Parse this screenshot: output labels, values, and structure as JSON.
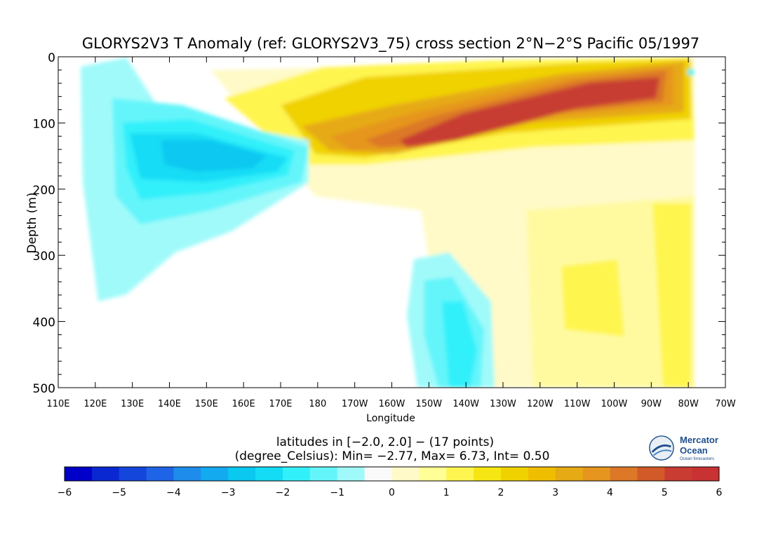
{
  "chart_data": {
    "type": "heatmap",
    "title": "GLORYS2V3 T Anomaly (ref: GLORYS2V3_75) cross section 2°N−2°S Pacific 05/1997",
    "xlabel": "Longitude",
    "ylabel": "Depth (m)",
    "x_ticks": [
      "110E",
      "120E",
      "130E",
      "140E",
      "150E",
      "160E",
      "170E",
      "180",
      "170W",
      "160W",
      "150W",
      "140W",
      "130W",
      "120W",
      "110W",
      "100W",
      "90W",
      "80W",
      "70W"
    ],
    "y_ticks": [
      "0",
      "100",
      "200",
      "300",
      "400",
      "500"
    ],
    "x_range_deg_east": [
      110,
      290
    ],
    "y_range_m": [
      0,
      500
    ],
    "subtitle_line1": "latitudes in [−2.0, 2.0] − (17 points)",
    "subtitle_line2": "(degree_Celsius): Min= −2.77, Max= 6.73, Int= 0.50",
    "stats": {
      "min": -2.77,
      "max": 6.73,
      "interval": 0.5,
      "unit": "degree_Celsius"
    },
    "colorbar": {
      "ticks": [
        "−6",
        "−5",
        "−4",
        "−3",
        "−2",
        "−1",
        "0",
        "1",
        "2",
        "3",
        "4",
        "5",
        "6"
      ],
      "range": [
        -6,
        6
      ],
      "step": 0.5,
      "colors": [
        "#0000c8",
        "#0a28d2",
        "#1446dc",
        "#1e64e6",
        "#1e8ceb",
        "#14aaf0",
        "#0ac8f0",
        "#14dcf5",
        "#32f0fa",
        "#64f5fa",
        "#a0fafa",
        "#fafafa",
        "#fffac8",
        "#ffff96",
        "#fff550",
        "#f5e614",
        "#f0d200",
        "#f0be00",
        "#e6aa14",
        "#e6961e",
        "#dc7828",
        "#d25a28",
        "#c83c32",
        "#c83232"
      ]
    },
    "features": [
      {
        "name": "warm-tongue",
        "lon": [
          170,
          272
        ],
        "depth_m": [
          30,
          160
        ],
        "value": 6.5
      },
      {
        "name": "cold-core-west",
        "lon": [
          125,
          178
        ],
        "depth_m": [
          90,
          240
        ],
        "value": -2.5
      },
      {
        "name": "cold-deep-central",
        "lon": [
          200,
          228
        ],
        "depth_m": [
          300,
          500
        ],
        "value": -1.5
      },
      {
        "name": "warm-deep-east",
        "lon": [
          235,
          275
        ],
        "depth_m": [
          300,
          500
        ],
        "value": 1.3
      }
    ]
  },
  "logo": {
    "name_line1": "Mercator",
    "name_line2": "Ocean",
    "tagline": "Ocean forecasters"
  }
}
